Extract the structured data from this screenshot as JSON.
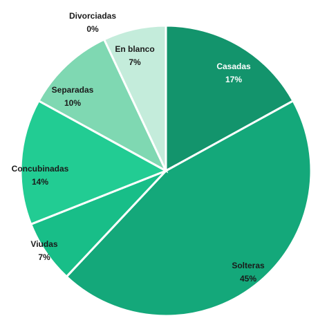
{
  "chart_data": {
    "type": "pie",
    "title": "",
    "slices": [
      {
        "label": "Casadas",
        "percent_label": "17%",
        "value": 17,
        "color": "#13946c",
        "label_color": "#ffffff"
      },
      {
        "label": "Solteras",
        "percent_label": "45%",
        "value": 45,
        "color": "#14a87a",
        "label_color": "#1a1a1a"
      },
      {
        "label": "Viudas",
        "percent_label": "7%",
        "value": 7,
        "color": "#18be88",
        "label_color": "#1a1a1a"
      },
      {
        "label": "Concubinadas",
        "percent_label": "14%",
        "value": 14,
        "color": "#22cc93",
        "label_color": "#1a1a1a"
      },
      {
        "label": "Separadas",
        "percent_label": "10%",
        "value": 10,
        "color": "#7fd8b2",
        "label_color": "#1a1a1a"
      },
      {
        "label": "En blanco",
        "percent_label": "7%",
        "value": 7,
        "color": "#c4ecdb",
        "label_color": "#1a1a1a"
      },
      {
        "label": "Divorciadas",
        "percent_label": "0%",
        "value": 0,
        "color": "#ffffff",
        "label_color": "#1a1a1a"
      }
    ]
  }
}
